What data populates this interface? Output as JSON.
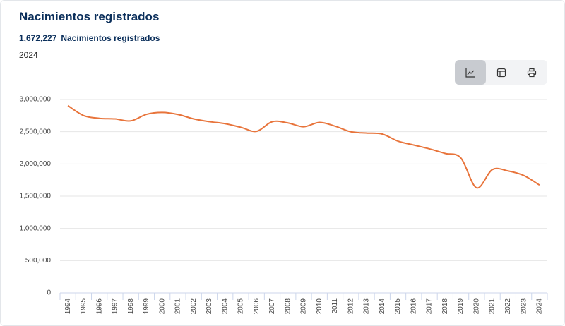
{
  "header": {
    "title": "Nacimientos registrados",
    "headline_value": "1,672,227",
    "headline_label": "Nacimientos registrados",
    "period": "2024"
  },
  "chart_data": {
    "type": "line",
    "categories": [
      "1994",
      "1995",
      "1996",
      "1997",
      "1998",
      "1999",
      "2000",
      "2001",
      "2002",
      "2003",
      "2004",
      "2005",
      "2006",
      "2007",
      "2008",
      "2009",
      "2010",
      "2011",
      "2012",
      "2013",
      "2014",
      "2015",
      "2016",
      "2017",
      "2018",
      "2019",
      "2020",
      "2021",
      "2022",
      "2023",
      "2024"
    ],
    "series": [
      {
        "name": "Nacimientos registrados",
        "color": "#e8743b",
        "values": [
          2904389,
          2750444,
          2707718,
          2698425,
          2668428,
          2769089,
          2798339,
          2767610,
          2699084,
          2655894,
          2625056,
          2567906,
          2505939,
          2655083,
          2636110,
          2577214,
          2643908,
          2586287,
          2498880,
          2478889,
          2463420,
          2353596,
          2293708,
          2234039,
          2162535,
          2092214,
          1629211,
          1912178,
          1891388,
          1820888,
          1672227
        ]
      }
    ],
    "ylim": [
      0,
      3000000
    ],
    "yticks": [
      0,
      {
        "value": 500000,
        "label": "500,000"
      },
      {
        "value": 1000000,
        "label": "1,000,000"
      },
      {
        "value": 1500000,
        "label": "1,500,000"
      },
      {
        "value": 2000000,
        "label": "2,000,000"
      },
      {
        "value": 2500000,
        "label": "2,500,000"
      },
      {
        "value": 3000000,
        "label": "3,000,000"
      }
    ],
    "grid": true
  }
}
